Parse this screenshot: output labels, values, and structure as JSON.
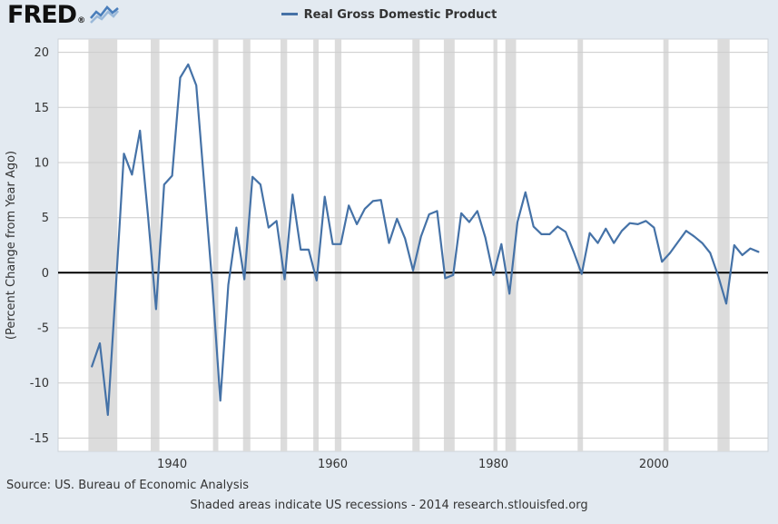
{
  "header": {
    "logo_text": "FRED",
    "logo_reg_mark": "®",
    "legend_label": "Real Gross Domestic Product"
  },
  "footer": {
    "source": "Source: US. Bureau of Economic Analysis",
    "note": "Shaded areas indicate US recessions - 2014 research.stlouisfed.org"
  },
  "colors": {
    "background": "#e3eaf1",
    "plot_background": "#ffffff",
    "plot_border": "#cdd3d9",
    "line": "#4572a7",
    "recession_band": "#dcdcdc",
    "gridline": "#cccccc",
    "zero_line": "#000000",
    "text": "#333333"
  },
  "chart_data": {
    "type": "line",
    "title": "Real Gross Domestic Product",
    "ylabel": "(Percent Change from Year Ago)",
    "legend_position": "top",
    "grid": "horizontal",
    "frequency": "Annual",
    "years": [
      1930,
      1931,
      1932,
      1933,
      1934,
      1935,
      1936,
      1937,
      1938,
      1939,
      1940,
      1941,
      1942,
      1943,
      1944,
      1945,
      1946,
      1947,
      1948,
      1949,
      1950,
      1951,
      1952,
      1953,
      1954,
      1955,
      1956,
      1957,
      1958,
      1959,
      1960,
      1961,
      1962,
      1963,
      1964,
      1965,
      1966,
      1967,
      1968,
      1969,
      1970,
      1971,
      1972,
      1973,
      1974,
      1975,
      1976,
      1977,
      1978,
      1979,
      1980,
      1981,
      1982,
      1983,
      1984,
      1985,
      1986,
      1987,
      1988,
      1989,
      1990,
      1991,
      1992,
      1993,
      1994,
      1995,
      1996,
      1997,
      1998,
      1999,
      2000,
      2001,
      2002,
      2003,
      2004,
      2005,
      2006,
      2007,
      2008,
      2009,
      2010,
      2011,
      2012,
      2013
    ],
    "values": [
      -8.5,
      -6.4,
      -12.9,
      -1.2,
      10.8,
      8.9,
      12.9,
      5.1,
      -3.3,
      8.0,
      8.8,
      17.7,
      18.9,
      17.0,
      8.0,
      -1.0,
      -11.6,
      -1.1,
      4.1,
      -0.6,
      8.7,
      8.0,
      4.1,
      4.7,
      -0.6,
      7.1,
      2.1,
      2.1,
      -0.7,
      6.9,
      2.6,
      2.6,
      6.1,
      4.4,
      5.8,
      6.5,
      6.6,
      2.7,
      4.9,
      3.1,
      0.2,
      3.3,
      5.3,
      5.6,
      -0.5,
      -0.2,
      5.4,
      4.6,
      5.6,
      3.2,
      -0.2,
      2.6,
      -1.9,
      4.6,
      7.3,
      4.2,
      3.5,
      3.5,
      4.2,
      3.7,
      1.9,
      -0.1,
      3.6,
      2.7,
      4.0,
      2.7,
      3.8,
      4.5,
      4.4,
      4.7,
      4.1,
      1.0,
      1.8,
      2.8,
      3.8,
      3.3,
      2.7,
      1.8,
      -0.3,
      -2.8,
      2.5,
      1.6,
      2.2,
      1.9
    ],
    "y_ticks": [
      20,
      15,
      10,
      5,
      0,
      -5,
      -10,
      -15
    ],
    "x_ticks": [
      1940,
      1960,
      1980,
      2000
    ],
    "ylim": [
      -16.2,
      21.2
    ],
    "xlim": [
      1925.8,
      2014.2
    ],
    "recessions": [
      [
        1929.58,
        1933.17
      ],
      [
        1937.33,
        1938.42
      ],
      [
        1945.08,
        1945.75
      ],
      [
        1948.83,
        1949.75
      ],
      [
        1953.5,
        1954.33
      ],
      [
        1957.58,
        1958.25
      ],
      [
        1960.25,
        1961.08
      ],
      [
        1969.92,
        1970.83
      ],
      [
        1973.83,
        1975.17
      ],
      [
        1980.0,
        1980.5
      ],
      [
        1981.5,
        1982.83
      ],
      [
        1990.5,
        1991.17
      ],
      [
        2001.17,
        2001.83
      ],
      [
        2007.92,
        2009.42
      ]
    ]
  }
}
